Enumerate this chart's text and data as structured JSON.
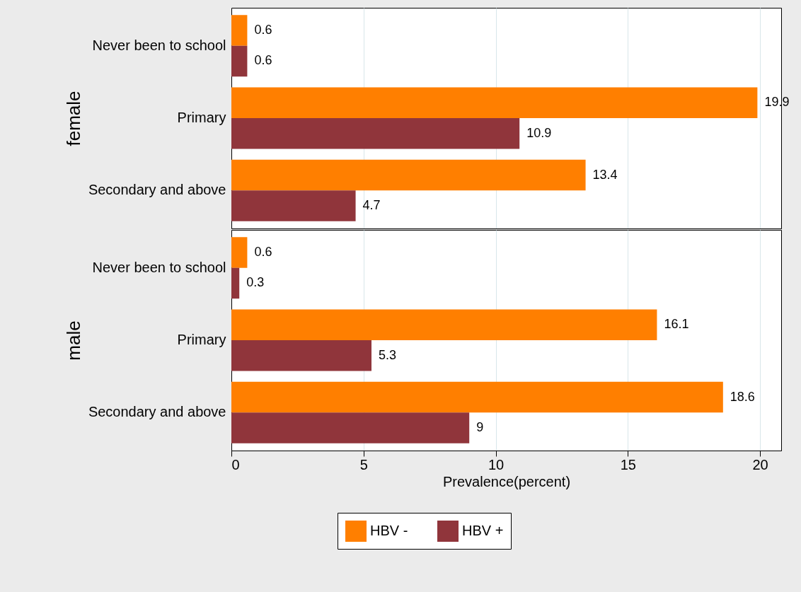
{
  "chart_data": [
    {
      "type": "bar",
      "orientation": "horizontal",
      "ylabel": "female",
      "categories": [
        "Never been to school",
        "Primary",
        "Secondary and above"
      ],
      "series": [
        {
          "color": "#ff7f00",
          "values": [
            0.6,
            19.9,
            13.4
          ]
        },
        {
          "color": "#90353b",
          "values": [
            0.6,
            10.9,
            4.7
          ]
        }
      ],
      "xlim": [
        0,
        20.8
      ],
      "xticks": [
        0,
        5,
        10,
        15,
        20
      ],
      "grid": "x",
      "data_labels": true,
      "tick_labels": "y",
      "legend": false
    },
    {
      "type": "bar",
      "orientation": "horizontal",
      "ylabel": "male",
      "xlabel": "Prevalence(percent)",
      "categories": [
        "Never been to school",
        "Primary",
        "Secondary and above"
      ],
      "series": [
        {
          "name": "HBV -",
          "color": "#ff7f00",
          "values": [
            0.6,
            16.1,
            18.6
          ]
        },
        {
          "name": "HBV +",
          "color": "#90353b",
          "values": [
            0.3,
            5.3,
            9
          ]
        }
      ],
      "xlim": [
        0,
        20.8
      ],
      "xticks": [
        0,
        5,
        10,
        15,
        20
      ],
      "grid": "x",
      "data_labels": true,
      "legend": "bottom"
    }
  ]
}
